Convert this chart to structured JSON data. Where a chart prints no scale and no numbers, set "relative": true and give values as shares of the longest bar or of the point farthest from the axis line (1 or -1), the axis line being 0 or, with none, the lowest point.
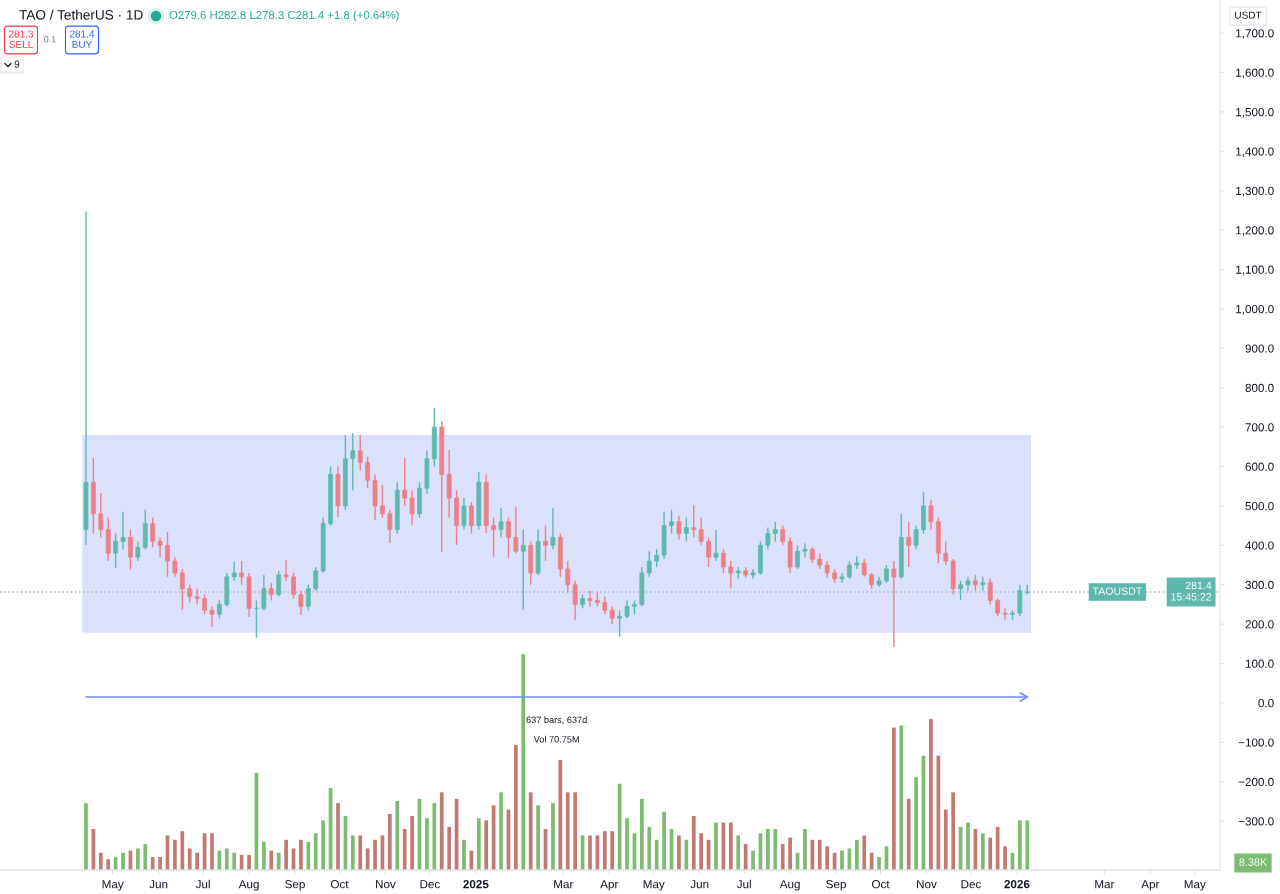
{
  "chart_data": [
    {
      "type": "candlestick",
      "title": "TAO / TetherUS · 1D",
      "subtitle": "O279.6 H282.8 L278.3 C281.4 +1.8 (+0.64%)",
      "x": [
        "2024-04-13",
        "2024-04-18",
        "2024-04-23",
        "2024-04-28",
        "2024-05-03",
        "2024-05-08",
        "2024-05-13",
        "2024-05-18",
        "2024-05-23",
        "2024-05-28",
        "2024-06-02",
        "2024-06-07",
        "2024-06-12",
        "2024-06-17",
        "2024-06-22",
        "2024-06-27",
        "2024-07-02",
        "2024-07-07",
        "2024-07-12",
        "2024-07-17",
        "2024-07-22",
        "2024-07-27",
        "2024-08-01",
        "2024-08-06",
        "2024-08-11",
        "2024-08-16",
        "2024-08-21",
        "2024-08-26",
        "2024-08-31",
        "2024-09-05",
        "2024-09-10",
        "2024-09-15",
        "2024-09-20",
        "2024-09-25",
        "2024-09-30",
        "2024-10-05",
        "2024-10-10",
        "2024-10-15",
        "2024-10-20",
        "2024-10-25",
        "2024-10-30",
        "2024-11-04",
        "2024-11-09",
        "2024-11-14",
        "2024-11-19",
        "2024-11-24",
        "2024-11-29",
        "2024-12-04",
        "2024-12-09",
        "2024-12-14",
        "2024-12-19",
        "2024-12-24",
        "2024-12-29",
        "2025-01-03",
        "2025-01-08",
        "2025-01-13",
        "2025-01-18",
        "2025-01-23",
        "2025-01-28",
        "2025-02-02",
        "2025-02-07",
        "2025-02-12",
        "2025-02-17",
        "2025-02-22",
        "2025-02-27",
        "2025-03-04",
        "2025-03-09",
        "2025-03-14",
        "2025-03-19",
        "2025-03-24",
        "2025-03-29",
        "2025-04-03",
        "2025-04-08",
        "2025-04-13",
        "2025-04-18",
        "2025-04-23",
        "2025-04-28",
        "2025-05-03",
        "2025-05-08",
        "2025-05-13",
        "2025-05-18",
        "2025-05-23",
        "2025-05-28",
        "2025-06-02",
        "2025-06-07",
        "2025-06-12",
        "2025-06-17",
        "2025-06-22",
        "2025-06-27",
        "2025-07-02",
        "2025-07-07",
        "2025-07-12",
        "2025-07-17",
        "2025-07-22",
        "2025-07-27",
        "2025-08-01",
        "2025-08-06",
        "2025-08-11",
        "2025-08-16",
        "2025-08-21",
        "2025-08-26",
        "2025-08-31",
        "2025-09-05",
        "2025-09-10",
        "2025-09-15",
        "2025-09-20",
        "2025-09-25",
        "2025-09-30",
        "2025-10-05",
        "2025-10-10",
        "2025-10-15",
        "2025-10-20",
        "2025-10-25",
        "2025-10-30",
        "2025-11-04",
        "2025-11-09",
        "2025-11-14",
        "2025-11-19",
        "2025-11-24",
        "2025-11-29",
        "2025-12-04",
        "2025-12-09",
        "2025-12-14",
        "2025-12-19",
        "2025-12-24",
        "2025-12-29",
        "2026-01-03",
        "2026-01-08"
      ],
      "ohlc": [
        [
          440,
          1247,
          401,
          560
        ],
        [
          560,
          622,
          430,
          480
        ],
        [
          480,
          533,
          420,
          440
        ],
        [
          440,
          470,
          360,
          380
        ],
        [
          380,
          430,
          342,
          410
        ],
        [
          410,
          485,
          390,
          420
        ],
        [
          420,
          440,
          338,
          370
        ],
        [
          370,
          410,
          360,
          395
        ],
        [
          395,
          490,
          390,
          455
        ],
        [
          455,
          470,
          395,
          410
        ],
        [
          410,
          420,
          370,
          400
        ],
        [
          400,
          434,
          320,
          360
        ],
        [
          360,
          370,
          320,
          330
        ],
        [
          330,
          340,
          236,
          290
        ],
        [
          290,
          300,
          255,
          270
        ],
        [
          270,
          290,
          250,
          265
        ],
        [
          265,
          275,
          225,
          235
        ],
        [
          235,
          245,
          193,
          225
        ],
        [
          225,
          260,
          215,
          250
        ],
        [
          250,
          330,
          245,
          320
        ],
        [
          320,
          358,
          310,
          330
        ],
        [
          330,
          360,
          300,
          320
        ],
        [
          320,
          330,
          218,
          240
        ],
        [
          240,
          260,
          165,
          240
        ],
        [
          240,
          325,
          235,
          290
        ],
        [
          290,
          305,
          260,
          275
        ],
        [
          275,
          335,
          270,
          325
        ],
        [
          325,
          363,
          310,
          320
        ],
        [
          320,
          330,
          265,
          275
        ],
        [
          275,
          285,
          223,
          245
        ],
        [
          245,
          300,
          235,
          290
        ],
        [
          290,
          345,
          285,
          335
        ],
        [
          335,
          470,
          330,
          455
        ],
        [
          455,
          600,
          450,
          580
        ],
        [
          580,
          600,
          472,
          500
        ],
        [
          500,
          680,
          490,
          620
        ],
        [
          620,
          685,
          540,
          640
        ],
        [
          640,
          680,
          590,
          610
        ],
        [
          610,
          625,
          545,
          565
        ],
        [
          565,
          580,
          464,
          500
        ],
        [
          500,
          553,
          470,
          480
        ],
        [
          480,
          490,
          406,
          440
        ],
        [
          440,
          560,
          430,
          540
        ],
        [
          540,
          622,
          500,
          520
        ],
        [
          520,
          540,
          452,
          480
        ],
        [
          480,
          560,
          470,
          545
        ],
        [
          545,
          640,
          530,
          620
        ],
        [
          620,
          749,
          600,
          700
        ],
        [
          700,
          715,
          383,
          580
        ],
        [
          580,
          642,
          470,
          520
        ],
        [
          520,
          540,
          401,
          450
        ],
        [
          450,
          520,
          440,
          500
        ],
        [
          500,
          510,
          430,
          450
        ],
        [
          450,
          586,
          440,
          560
        ],
        [
          560,
          580,
          431,
          450
        ],
        [
          450,
          470,
          371,
          440
        ],
        [
          440,
          495,
          420,
          460
        ],
        [
          460,
          470,
          368,
          420
        ],
        [
          420,
          498,
          380,
          385
        ],
        [
          385,
          440,
          236,
          400
        ],
        [
          400,
          410,
          300,
          330
        ],
        [
          330,
          440,
          325,
          410
        ],
        [
          410,
          450,
          360,
          400
        ],
        [
          400,
          495,
          390,
          420
        ],
        [
          420,
          430,
          320,
          340
        ],
        [
          340,
          360,
          280,
          300
        ],
        [
          300,
          310,
          211,
          250
        ],
        [
          250,
          275,
          240,
          265
        ],
        [
          265,
          285,
          245,
          260
        ],
        [
          260,
          280,
          245,
          255
        ],
        [
          255,
          270,
          225,
          235
        ],
        [
          235,
          245,
          200,
          215
        ],
        [
          215,
          235,
          168,
          220
        ],
        [
          220,
          260,
          215,
          245
        ],
        [
          245,
          260,
          225,
          250
        ],
        [
          250,
          345,
          245,
          330
        ],
        [
          330,
          385,
          320,
          360
        ],
        [
          360,
          390,
          345,
          375
        ],
        [
          375,
          485,
          365,
          450
        ],
        [
          450,
          490,
          430,
          460
        ],
        [
          460,
          475,
          415,
          430
        ],
        [
          430,
          470,
          410,
          445
        ],
        [
          445,
          502,
          420,
          440
        ],
        [
          440,
          470,
          400,
          410
        ],
        [
          410,
          420,
          345,
          370
        ],
        [
          370,
          439,
          360,
          380
        ],
        [
          380,
          390,
          330,
          345
        ],
        [
          345,
          360,
          292,
          330
        ],
        [
          330,
          345,
          315,
          335
        ],
        [
          335,
          345,
          318,
          325
        ],
        [
          325,
          340,
          315,
          330
        ],
        [
          330,
          410,
          325,
          400
        ],
        [
          400,
          445,
          390,
          430
        ],
        [
          430,
          459,
          410,
          440
        ],
        [
          440,
          450,
          400,
          410
        ],
        [
          410,
          420,
          330,
          345
        ],
        [
          345,
          400,
          340,
          385
        ],
        [
          385,
          405,
          370,
          390
        ],
        [
          390,
          395,
          355,
          365
        ],
        [
          365,
          380,
          340,
          350
        ],
        [
          350,
          360,
          318,
          330
        ],
        [
          330,
          340,
          305,
          315
        ],
        [
          315,
          330,
          305,
          320
        ],
        [
          320,
          360,
          315,
          350
        ],
        [
          350,
          372,
          340,
          355
        ],
        [
          355,
          365,
          320,
          325
        ],
        [
          325,
          330,
          290,
          300
        ],
        [
          300,
          320,
          295,
          310
        ],
        [
          310,
          350,
          305,
          340
        ],
        [
          340,
          360,
          142,
          320
        ],
        [
          320,
          480,
          315,
          420
        ],
        [
          420,
          460,
          345,
          400
        ],
        [
          400,
          450,
          390,
          440
        ],
        [
          440,
          536,
          430,
          500
        ],
        [
          500,
          515,
          440,
          460
        ],
        [
          460,
          470,
          355,
          380
        ],
        [
          380,
          410,
          350,
          360
        ],
        [
          360,
          365,
          275,
          290
        ],
        [
          290,
          310,
          261,
          300
        ],
        [
          300,
          320,
          285,
          310
        ],
        [
          310,
          325,
          285,
          300
        ],
        [
          300,
          320,
          285,
          305
        ],
        [
          305,
          315,
          250,
          260
        ],
        [
          260,
          265,
          220,
          228
        ],
        [
          228,
          240,
          212,
          225
        ],
        [
          225,
          235,
          210,
          228
        ],
        [
          228,
          300,
          220,
          285
        ],
        [
          280,
          300,
          275,
          281.4
        ]
      ],
      "colors": [
        "#5fb8ad",
        "#ec8086",
        "#ec8086",
        "#ec8086",
        "#5fb8ad",
        "#5fb8ad",
        "#ec8086",
        "#5fb8ad",
        "#5fb8ad",
        "#ec8086",
        "#ec8086",
        "#ec8086",
        "#ec8086",
        "#ec8086",
        "#ec8086",
        "#ec8086",
        "#ec8086",
        "#ec8086",
        "#5fb8ad",
        "#5fb8ad",
        "#5fb8ad",
        "#ec8086",
        "#ec8086",
        "#5fb8ad",
        "#5fb8ad",
        "#ec8086",
        "#5fb8ad",
        "#ec8086",
        "#ec8086",
        "#ec8086",
        "#5fb8ad",
        "#5fb8ad",
        "#5fb8ad",
        "#5fb8ad",
        "#ec8086",
        "#5fb8ad",
        "#5fb8ad",
        "#ec8086",
        "#ec8086",
        "#ec8086",
        "#ec8086",
        "#ec8086",
        "#5fb8ad",
        "#ec8086",
        "#ec8086",
        "#5fb8ad",
        "#5fb8ad",
        "#5fb8ad",
        "#ec8086",
        "#ec8086",
        "#ec8086",
        "#5fb8ad",
        "#ec8086",
        "#5fb8ad",
        "#ec8086",
        "#ec8086",
        "#5fb8ad",
        "#ec8086",
        "#ec8086",
        "#5fb8ad",
        "#ec8086",
        "#5fb8ad",
        "#ec8086",
        "#5fb8ad",
        "#ec8086",
        "#ec8086",
        "#ec8086",
        "#5fb8ad",
        "#ec8086",
        "#ec8086",
        "#ec8086",
        "#ec8086",
        "#5fb8ad",
        "#5fb8ad",
        "#5fb8ad",
        "#5fb8ad",
        "#5fb8ad",
        "#5fb8ad",
        "#5fb8ad",
        "#5fb8ad",
        "#ec8086",
        "#5fb8ad",
        "#ec8086",
        "#ec8086",
        "#ec8086",
        "#5fb8ad",
        "#ec8086",
        "#ec8086",
        "#5fb8ad",
        "#ec8086",
        "#5fb8ad",
        "#5fb8ad",
        "#5fb8ad",
        "#5fb8ad",
        "#ec8086",
        "#ec8086",
        "#5fb8ad",
        "#5fb8ad",
        "#ec8086",
        "#ec8086",
        "#ec8086",
        "#ec8086",
        "#5fb8ad",
        "#5fb8ad",
        "#5fb8ad",
        "#ec8086",
        "#ec8086",
        "#5fb8ad",
        "#5fb8ad",
        "#ec8086",
        "#5fb8ad",
        "#ec8086",
        "#5fb8ad",
        "#5fb8ad",
        "#ec8086",
        "#ec8086",
        "#ec8086",
        "#ec8086",
        "#5fb8ad",
        "#5fb8ad",
        "#ec8086",
        "#5fb8ad",
        "#ec8086",
        "#ec8086",
        "#ec8086",
        "#5fb8ad",
        "#5fb8ad",
        "#5fb8ad"
      ],
      "series": [
        {
          "type": "line",
          "x": [
            "2024-04-13",
            "2026-01-08"
          ],
          "values": [
            15,
            15
          ],
          "color": "#6f8ef0"
        }
      ],
      "xlim": [
        "2024-02-15",
        "2026-05-18"
      ],
      "ylim": [
        -424,
        1784
      ],
      "yticks": [
        {
          "value": -300,
          "label": "−300.0"
        },
        {
          "value": -200,
          "label": "−200.0"
        },
        {
          "value": -100,
          "label": "−100.0"
        },
        {
          "value": 0,
          "label": "0.0"
        },
        {
          "value": 100,
          "label": "100.0"
        },
        {
          "value": 200,
          "label": "200.0"
        },
        {
          "value": 300,
          "label": "300.0"
        },
        {
          "value": 400,
          "label": "400.0"
        },
        {
          "value": 500,
          "label": "500.0"
        },
        {
          "value": 600,
          "label": "600.0"
        },
        {
          "value": 700,
          "label": "700.0"
        },
        {
          "value": 800,
          "label": "800.0"
        },
        {
          "value": 900,
          "label": "900.0"
        },
        {
          "value": 1000,
          "label": "1,000.0"
        },
        {
          "value": 1100,
          "label": "1,100.0"
        },
        {
          "value": 1200,
          "label": "1,200.0"
        },
        {
          "value": 1300,
          "label": "1,300.0"
        },
        {
          "value": 1400,
          "label": "1,400.0"
        },
        {
          "value": 1500,
          "label": "1,500.0"
        },
        {
          "value": 1600,
          "label": "1,600.0"
        },
        {
          "value": 1700,
          "label": "1,700.0"
        }
      ],
      "tick_labels": "y",
      "bands": [
        {
          "axis": "y",
          "from": 178,
          "to": 680,
          "color": "#dbe1fb"
        }
      ],
      "ref_lines": [
        {
          "axis": "y",
          "value": 281.4,
          "label": "TAOUSDT",
          "color": "#a9adb5",
          "line_style": "dotted"
        }
      ],
      "annotations": [
        "637 bars, 637d",
        "Vol 70.75M",
        "15:45:22",
        "USDT",
        "281.3",
        "SELL",
        "0.1",
        "281.4",
        "BUY",
        "9"
      ]
    },
    {
      "type": "bar",
      "relative": true,
      "x": [
        "2024-04-13",
        "2024-04-18",
        "2024-04-23",
        "2024-04-28",
        "2024-05-03",
        "2024-05-08",
        "2024-05-13",
        "2024-05-18",
        "2024-05-23",
        "2024-05-28",
        "2024-06-02",
        "2024-06-07",
        "2024-06-12",
        "2024-06-17",
        "2024-06-22",
        "2024-06-27",
        "2024-07-02",
        "2024-07-07",
        "2024-07-12",
        "2024-07-17",
        "2024-07-22",
        "2024-07-27",
        "2024-08-01",
        "2024-08-06",
        "2024-08-11",
        "2024-08-16",
        "2024-08-21",
        "2024-08-26",
        "2024-08-31",
        "2024-09-05",
        "2024-09-10",
        "2024-09-15",
        "2024-09-20",
        "2024-09-25",
        "2024-09-30",
        "2024-10-05",
        "2024-10-10",
        "2024-10-15",
        "2024-10-20",
        "2024-10-25",
        "2024-10-30",
        "2024-11-04",
        "2024-11-09",
        "2024-11-14",
        "2024-11-19",
        "2024-11-24",
        "2024-11-29",
        "2024-12-04",
        "2024-12-09",
        "2024-12-14",
        "2024-12-19",
        "2024-12-24",
        "2024-12-29",
        "2025-01-03",
        "2025-01-08",
        "2025-01-13",
        "2025-01-18",
        "2025-01-23",
        "2025-01-28",
        "2025-02-02",
        "2025-02-07",
        "2025-02-12",
        "2025-02-17",
        "2025-02-22",
        "2025-02-27",
        "2025-03-04",
        "2025-03-09",
        "2025-03-14",
        "2025-03-19",
        "2025-03-24",
        "2025-03-29",
        "2025-04-03",
        "2025-04-08",
        "2025-04-13",
        "2025-04-18",
        "2025-04-23",
        "2025-04-28",
        "2025-05-03",
        "2025-05-08",
        "2025-05-13",
        "2025-05-18",
        "2025-05-23",
        "2025-05-28",
        "2025-06-02",
        "2025-06-07",
        "2025-06-12",
        "2025-06-17",
        "2025-06-22",
        "2025-06-27",
        "2025-07-02",
        "2025-07-07",
        "2025-07-12",
        "2025-07-17",
        "2025-07-22",
        "2025-07-27",
        "2025-08-01",
        "2025-08-06",
        "2025-08-11",
        "2025-08-16",
        "2025-08-21",
        "2025-08-26",
        "2025-08-31",
        "2025-09-05",
        "2025-09-10",
        "2025-09-15",
        "2025-09-20",
        "2025-09-25",
        "2025-09-30",
        "2025-10-05",
        "2025-10-10",
        "2025-10-15",
        "2025-10-20",
        "2025-10-25",
        "2025-10-30",
        "2025-11-04",
        "2025-11-09",
        "2025-11-14",
        "2025-11-19",
        "2025-11-24",
        "2025-11-29",
        "2025-12-04",
        "2025-12-09",
        "2025-12-14",
        "2025-12-19",
        "2025-12-24",
        "2025-12-29",
        "2026-01-03",
        "2026-01-08"
      ],
      "values": [
        0.31,
        0.19,
        0.08,
        0.05,
        0.06,
        0.08,
        0.09,
        0.1,
        0.12,
        0.06,
        0.06,
        0.16,
        0.14,
        0.18,
        0.1,
        0.08,
        0.17,
        0.17,
        0.09,
        0.1,
        0.08,
        0.07,
        0.07,
        0.45,
        0.13,
        0.09,
        0.08,
        0.14,
        0.1,
        0.14,
        0.13,
        0.17,
        0.23,
        0.38,
        0.31,
        0.25,
        0.16,
        0.16,
        0.1,
        0.14,
        0.16,
        0.26,
        0.32,
        0.19,
        0.25,
        0.33,
        0.24,
        0.31,
        0.36,
        0.2,
        0.33,
        0.14,
        0.09,
        0.24,
        0.23,
        0.3,
        0.36,
        0.28,
        0.58,
        1.0,
        0.36,
        0.3,
        0.19,
        0.31,
        0.51,
        0.36,
        0.36,
        0.16,
        0.16,
        0.16,
        0.18,
        0.18,
        0.4,
        0.24,
        0.17,
        0.33,
        0.2,
        0.14,
        0.27,
        0.19,
        0.16,
        0.14,
        0.25,
        0.17,
        0.14,
        0.22,
        0.22,
        0.22,
        0.16,
        0.12,
        0.09,
        0.17,
        0.19,
        0.19,
        0.12,
        0.15,
        0.08,
        0.19,
        0.14,
        0.14,
        0.11,
        0.08,
        0.09,
        0.1,
        0.14,
        0.16,
        0.08,
        0.06,
        0.11,
        0.66,
        0.67,
        0.33,
        0.43,
        0.53,
        0.7,
        0.53,
        0.28,
        0.36,
        0.2,
        0.22,
        0.19,
        0.17,
        0.15,
        0.2,
        0.11,
        0.08,
        0.23,
        0.23
      ],
      "colors": [
        "#7dba72",
        "#c07a73",
        "#c07a73",
        "#c07a73",
        "#7dba72",
        "#7dba72",
        "#c07a73",
        "#7dba72",
        "#7dba72",
        "#c07a73",
        "#c07a73",
        "#c07a73",
        "#c07a73",
        "#c07a73",
        "#c07a73",
        "#c07a73",
        "#c07a73",
        "#c07a73",
        "#7dba72",
        "#7dba72",
        "#7dba72",
        "#c07a73",
        "#c07a73",
        "#7dba72",
        "#7dba72",
        "#c07a73",
        "#7dba72",
        "#c07a73",
        "#c07a73",
        "#c07a73",
        "#7dba72",
        "#7dba72",
        "#7dba72",
        "#7dba72",
        "#c07a73",
        "#7dba72",
        "#7dba72",
        "#c07a73",
        "#c07a73",
        "#c07a73",
        "#c07a73",
        "#c07a73",
        "#7dba72",
        "#c07a73",
        "#c07a73",
        "#7dba72",
        "#7dba72",
        "#7dba72",
        "#c07a73",
        "#c07a73",
        "#c07a73",
        "#7dba72",
        "#c07a73",
        "#7dba72",
        "#c07a73",
        "#c07a73",
        "#7dba72",
        "#c07a73",
        "#c07a73",
        "#7dba72",
        "#c07a73",
        "#7dba72",
        "#c07a73",
        "#7dba72",
        "#c07a73",
        "#c07a73",
        "#c07a73",
        "#7dba72",
        "#c07a73",
        "#c07a73",
        "#c07a73",
        "#c07a73",
        "#7dba72",
        "#7dba72",
        "#7dba72",
        "#7dba72",
        "#7dba72",
        "#7dba72",
        "#7dba72",
        "#7dba72",
        "#c07a73",
        "#7dba72",
        "#c07a73",
        "#c07a73",
        "#c07a73",
        "#7dba72",
        "#c07a73",
        "#c07a73",
        "#7dba72",
        "#c07a73",
        "#7dba72",
        "#7dba72",
        "#7dba72",
        "#7dba72",
        "#c07a73",
        "#c07a73",
        "#7dba72",
        "#7dba72",
        "#c07a73",
        "#c07a73",
        "#c07a73",
        "#c07a73",
        "#7dba72",
        "#7dba72",
        "#7dba72",
        "#c07a73",
        "#c07a73",
        "#7dba72",
        "#7dba72",
        "#c07a73",
        "#7dba72",
        "#c07a73",
        "#7dba72",
        "#7dba72",
        "#c07a73",
        "#c07a73",
        "#c07a73",
        "#c07a73",
        "#7dba72",
        "#7dba72",
        "#c07a73",
        "#7dba72",
        "#c07a73",
        "#c07a73",
        "#c07a73",
        "#7dba72",
        "#7dba72",
        "#7dba72"
      ],
      "xlim": [
        "2024-02-15",
        "2026-05-18"
      ],
      "xticks": [
        {
          "value": "2024-05-01",
          "label": "May"
        },
        {
          "value": "2024-06-01",
          "label": "Jun"
        },
        {
          "value": "2024-07-01",
          "label": "Jul"
        },
        {
          "value": "2024-08-01",
          "label": "Aug"
        },
        {
          "value": "2024-09-01",
          "label": "Sep"
        },
        {
          "value": "2024-10-01",
          "label": "Oct"
        },
        {
          "value": "2024-11-01",
          "label": "Nov"
        },
        {
          "value": "2024-12-01",
          "label": "Dec"
        },
        {
          "value": "2025-01-01",
          "label": "2025"
        },
        {
          "value": "2025-03-01",
          "label": "Mar"
        },
        {
          "value": "2025-04-01",
          "label": "Apr"
        },
        {
          "value": "2025-05-01",
          "label": "May"
        },
        {
          "value": "2025-06-01",
          "label": "Jun"
        },
        {
          "value": "2025-07-01",
          "label": "Jul"
        },
        {
          "value": "2025-08-01",
          "label": "Aug"
        },
        {
          "value": "2025-09-01",
          "label": "Sep"
        },
        {
          "value": "2025-10-01",
          "label": "Oct"
        },
        {
          "value": "2025-11-01",
          "label": "Nov"
        },
        {
          "value": "2025-12-01",
          "label": "Dec"
        },
        {
          "value": "2026-01-01",
          "label": "2026"
        },
        {
          "value": "2026-03-01",
          "label": "Mar"
        },
        {
          "value": "2026-04-01",
          "label": "Apr"
        },
        {
          "value": "2026-05-01",
          "label": "May"
        }
      ],
      "tick_labels": "x",
      "annotations": [
        "8.38K"
      ]
    }
  ]
}
